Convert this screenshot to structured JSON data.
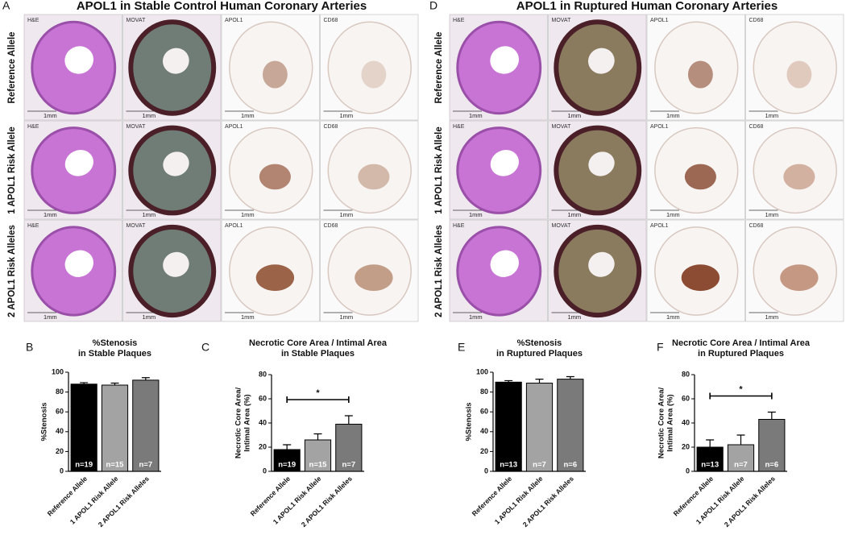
{
  "histology": [
    {
      "letter": "A",
      "title": "APOL1 in Stable Control Human Coronary Arteries",
      "columns": [
        {
          "stain": "H&E",
          "color": "#c774d4"
        },
        {
          "stain": "MOVAT",
          "color": "#6f7d76"
        },
        {
          "stain": "APOL1",
          "color": "#8b4a2b"
        },
        {
          "stain": "CD68",
          "color": "#a5704f"
        }
      ],
      "rows": [
        {
          "label": "Reference Allele",
          "scales": [
            "1mm",
            "1mm",
            "1mm",
            "1mm"
          ]
        },
        {
          "label": "1 APOL1 Risk Allele",
          "scales": [
            "1mm",
            "1mm",
            "1mm",
            "1mm"
          ]
        },
        {
          "label": "2 APOL1 Risk Alleles",
          "scales": [
            "1mm",
            "1mm",
            "1mm",
            "1mm"
          ]
        }
      ]
    },
    {
      "letter": "D",
      "title": "APOL1 in Ruptured Human Coronary Arteries",
      "columns": [
        {
          "stain": "H&E",
          "color": "#c774d4"
        },
        {
          "stain": "MOVAT",
          "color": "#8a7a5e"
        },
        {
          "stain": "APOL1",
          "color": "#7e3a1e"
        },
        {
          "stain": "CD68",
          "color": "#b47a5e"
        }
      ],
      "rows": [
        {
          "label": "Reference Allele",
          "scales": [
            "1mm",
            "1mm",
            "1mm",
            "1mm"
          ]
        },
        {
          "label": "1 APOL1 Risk Allele",
          "scales": [
            "1mm",
            "1mm",
            "1mm",
            "1mm"
          ]
        },
        {
          "label": "2 APOL1 Risk Alleles",
          "scales": [
            "1mm",
            "1mm",
            "1mm",
            "1mm"
          ]
        }
      ]
    }
  ],
  "chart_data": [
    {
      "type": "bar",
      "letter": "B",
      "title": [
        "%Stenosis",
        "in Stable Plaques"
      ],
      "y_label": [
        "%Stenosis"
      ],
      "categories": [
        "Reference Allele",
        "1 APOL1 Risk Allele",
        "2 APOL1 Risk Alleles"
      ],
      "values": [
        88,
        87,
        92
      ],
      "errors": [
        1.5,
        2,
        2.5
      ],
      "n_labels": [
        "n=19",
        "n=15",
        "n=7"
      ],
      "colors": [
        "#000000",
        "#a3a3a3",
        "#7a7a7a"
      ],
      "ylim": [
        0,
        100
      ],
      "yticks": [
        0,
        20,
        40,
        60,
        80,
        100
      ]
    },
    {
      "type": "bar",
      "letter": "C",
      "title": [
        "Necrotic Core Area / Intimal Area",
        "in Stable Plaques"
      ],
      "y_label": [
        "Necrotic Core Area/",
        "Intimal Area (%)"
      ],
      "categories": [
        "Reference Allele",
        "1 APOL1 Risk Allele",
        "2 APOL1 Risk Alleles"
      ],
      "values": [
        18,
        26,
        39
      ],
      "errors": [
        4,
        5,
        7
      ],
      "n_labels": [
        "n=19",
        "n=15",
        "n=7"
      ],
      "colors": [
        "#000000",
        "#a3a3a3",
        "#7a7a7a"
      ],
      "ylim": [
        0,
        80
      ],
      "yticks": [
        0,
        20,
        40,
        60,
        80
      ],
      "significance_label": "*"
    },
    {
      "type": "bar",
      "letter": "E",
      "title": [
        "%Stenosis",
        "in Ruptured Plaques"
      ],
      "y_label": [
        "%Stenosis"
      ],
      "categories": [
        "Reference Allele",
        "1 APOL1 Risk Allele",
        "2 APOL1 Risk Alleles"
      ],
      "values": [
        90,
        89,
        93
      ],
      "errors": [
        1.5,
        4,
        2.5
      ],
      "n_labels": [
        "n=13",
        "n=7",
        "n=6"
      ],
      "colors": [
        "#000000",
        "#a3a3a3",
        "#7a7a7a"
      ],
      "ylim": [
        0,
        100
      ],
      "yticks": [
        0,
        20,
        40,
        60,
        80,
        100
      ]
    },
    {
      "type": "bar",
      "letter": "F",
      "title": [
        "Necrotic Core Area / Intimal Area",
        "in Ruptured Plaques"
      ],
      "y_label": [
        "Necrotic Core Area/",
        "Intimal Area (%)"
      ],
      "categories": [
        "Reference Allele",
        "1 APOL1 Risk Allele",
        "2 APOL1 Risk Alleles"
      ],
      "values": [
        20,
        22,
        43
      ],
      "errors": [
        6,
        8,
        6
      ],
      "n_labels": [
        "n=13",
        "n=7",
        "n=6"
      ],
      "colors": [
        "#000000",
        "#a3a3a3",
        "#7a7a7a"
      ],
      "ylim": [
        0,
        80
      ],
      "yticks": [
        0,
        20,
        40,
        60,
        80
      ],
      "significance_label": "*"
    }
  ]
}
